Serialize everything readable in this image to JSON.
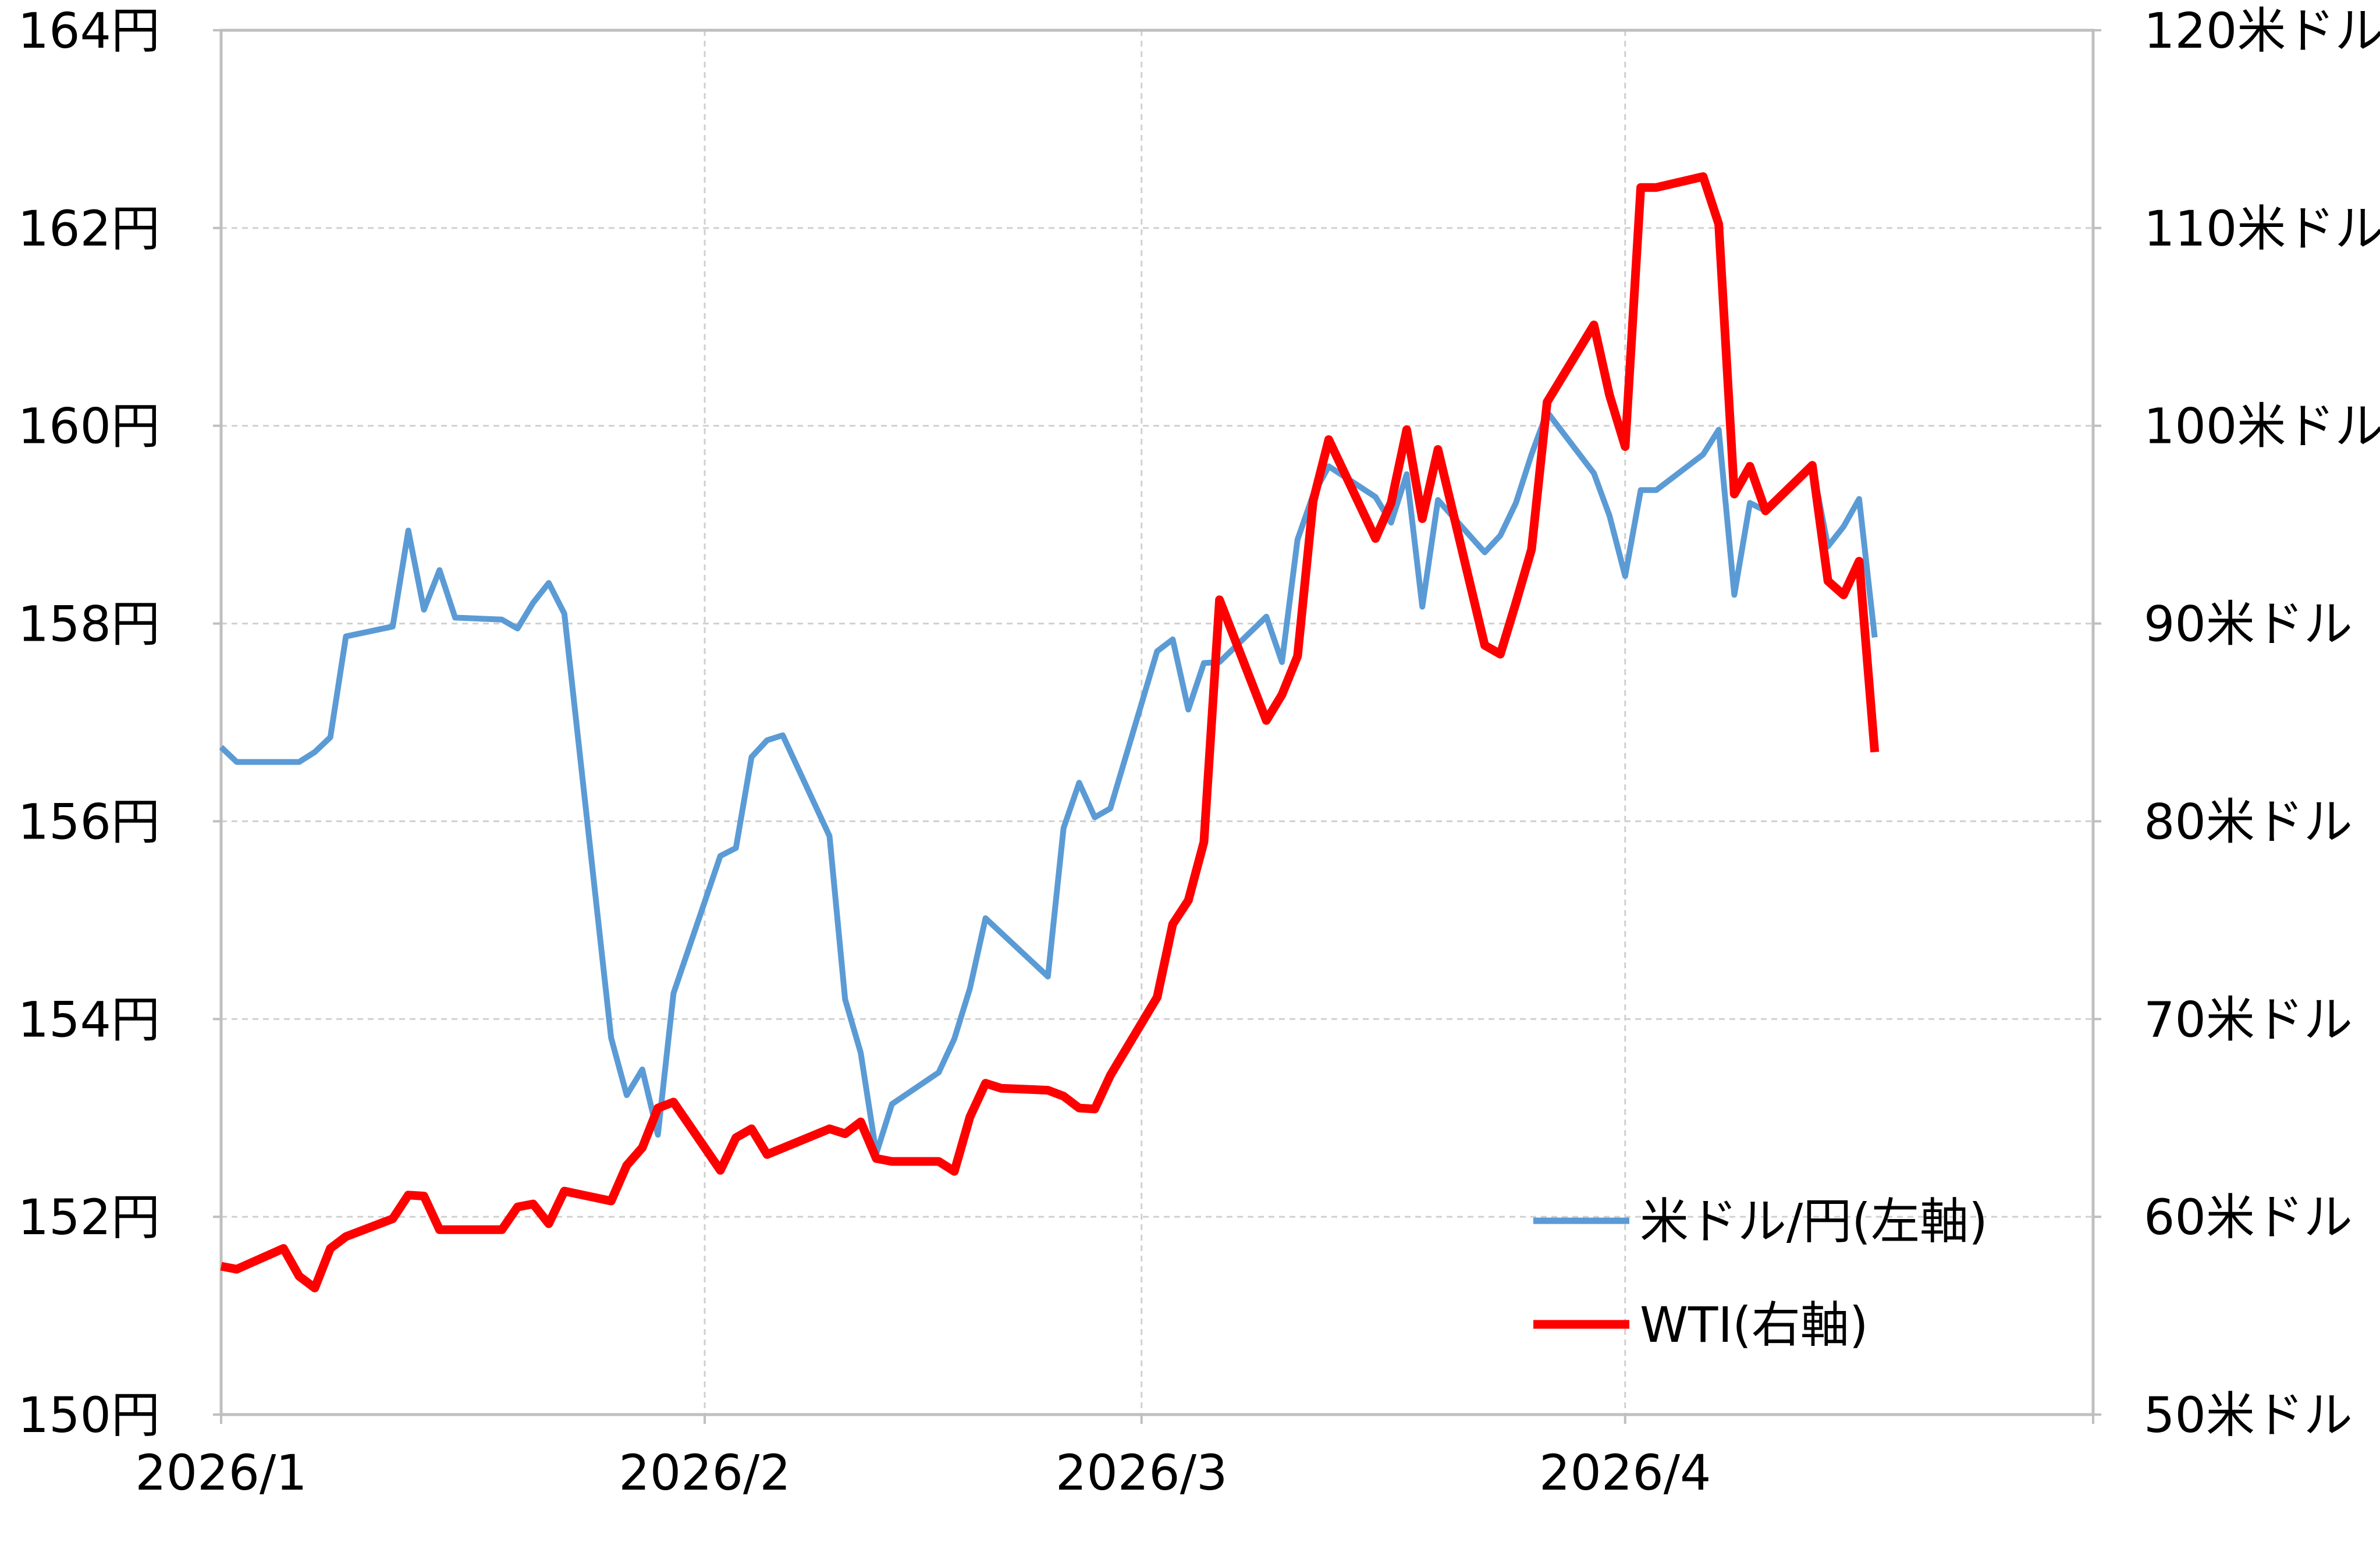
{
  "chart_data": {
    "type": "line",
    "title": "",
    "x_axis": {
      "type": "date",
      "range": [
        "2026-01-01",
        "2026-05-01"
      ],
      "tick_dates": [
        "2026-01-01",
        "2026-02-01",
        "2026-03-01",
        "2026-04-01"
      ],
      "tick_labels": [
        "2026/1",
        "2026/2",
        "2026/3",
        "2026/4"
      ],
      "grid": true
    },
    "y_left": {
      "range": [
        150,
        164
      ],
      "ticks": [
        150,
        152,
        154,
        156,
        158,
        160,
        162,
        164
      ],
      "tick_labels": [
        "150円",
        "152円",
        "154円",
        "156円",
        "158円",
        "160円",
        "162円",
        "164円"
      ],
      "grid": true
    },
    "y_right": {
      "range": [
        50,
        120
      ],
      "ticks": [
        50,
        60,
        70,
        80,
        90,
        100,
        110,
        120
      ],
      "tick_labels": [
        "50米ドル",
        "60米ドル",
        "70米ドル",
        "80米ドル",
        "90米ドル",
        "100米ドル",
        "110米ドル",
        "120米ドル"
      ]
    },
    "legend_position": "bottom-right",
    "series": [
      {
        "name": "米ドル/円(左軸)",
        "axis": "left",
        "color": "#5B9BD5",
        "points": [
          [
            "2026-01-01",
            156.75
          ],
          [
            "2026-01-02",
            156.6
          ],
          [
            "2026-01-05",
            156.6
          ],
          [
            "2026-01-06",
            156.6
          ],
          [
            "2026-01-07",
            156.7
          ],
          [
            "2026-01-08",
            156.85
          ],
          [
            "2026-01-09",
            157.87
          ],
          [
            "2026-01-12",
            157.97
          ],
          [
            "2026-01-13",
            158.94
          ],
          [
            "2026-01-14",
            158.14
          ],
          [
            "2026-01-15",
            158.54
          ],
          [
            "2026-01-16",
            158.06
          ],
          [
            "2026-01-19",
            158.04
          ],
          [
            "2026-01-20",
            157.95
          ],
          [
            "2026-01-21",
            158.21
          ],
          [
            "2026-01-22",
            158.41
          ],
          [
            "2026-01-23",
            158.1
          ],
          [
            "2026-01-26",
            153.81
          ],
          [
            "2026-01-27",
            153.23
          ],
          [
            "2026-01-28",
            153.49
          ],
          [
            "2026-01-29",
            152.83
          ],
          [
            "2026-01-30",
            154.26
          ],
          [
            "2026-02-02",
            155.65
          ],
          [
            "2026-02-03",
            155.73
          ],
          [
            "2026-02-04",
            156.65
          ],
          [
            "2026-02-05",
            156.82
          ],
          [
            "2026-02-06",
            156.87
          ],
          [
            "2026-02-09",
            155.85
          ],
          [
            "2026-02-10",
            154.2
          ],
          [
            "2026-02-11",
            153.66
          ],
          [
            "2026-02-12",
            152.64
          ],
          [
            "2026-02-13",
            153.14
          ],
          [
            "2026-02-16",
            153.46
          ],
          [
            "2026-02-17",
            153.8
          ],
          [
            "2026-02-18",
            154.31
          ],
          [
            "2026-02-19",
            155.02
          ],
          [
            "2026-02-23",
            154.43
          ],
          [
            "2026-02-24",
            155.93
          ],
          [
            "2026-02-25",
            156.39
          ],
          [
            "2026-02-26",
            156.04
          ],
          [
            "2026-02-27",
            156.13
          ],
          [
            "2026-03-02",
            157.72
          ],
          [
            "2026-03-03",
            157.84
          ],
          [
            "2026-03-04",
            157.13
          ],
          [
            "2026-03-05",
            157.6
          ],
          [
            "2026-03-06",
            157.61
          ],
          [
            "2026-03-09",
            158.07
          ],
          [
            "2026-03-10",
            157.61
          ],
          [
            "2026-03-11",
            158.85
          ],
          [
            "2026-03-12",
            159.3
          ],
          [
            "2026-03-13",
            159.59
          ],
          [
            "2026-03-16",
            159.28
          ],
          [
            "2026-03-17",
            159.02
          ],
          [
            "2026-03-18",
            159.51
          ],
          [
            "2026-03-19",
            158.17
          ],
          [
            "2026-03-20",
            159.25
          ],
          [
            "2026-03-23",
            158.72
          ],
          [
            "2026-03-24",
            158.89
          ],
          [
            "2026-03-25",
            159.22
          ],
          [
            "2026-03-26",
            159.71
          ],
          [
            "2026-03-27",
            160.14
          ],
          [
            "2026-03-30",
            159.52
          ],
          [
            "2026-03-31",
            159.09
          ],
          [
            "2026-04-01",
            158.48
          ],
          [
            "2026-04-02",
            159.35
          ],
          [
            "2026-04-03",
            159.35
          ],
          [
            "2026-04-06",
            159.71
          ],
          [
            "2026-04-07",
            159.96
          ],
          [
            "2026-04-08",
            158.29
          ],
          [
            "2026-04-09",
            159.22
          ],
          [
            "2026-04-10",
            159.14
          ],
          [
            "2026-04-13",
            159.6
          ],
          [
            "2026-04-14",
            158.78
          ],
          [
            "2026-04-15",
            158.98
          ],
          [
            "2026-04-16",
            159.26
          ],
          [
            "2026-04-17",
            157.86
          ]
        ]
      },
      {
        "name": "WTI(右軸)",
        "axis": "right",
        "color": "#FF0000",
        "points": [
          [
            "2026-01-01",
            57.5
          ],
          [
            "2026-01-02",
            57.35
          ],
          [
            "2026-01-05",
            58.4
          ],
          [
            "2026-01-06",
            57.0
          ],
          [
            "2026-01-07",
            56.4
          ],
          [
            "2026-01-08",
            58.4
          ],
          [
            "2026-01-09",
            59.0
          ],
          [
            "2026-01-12",
            59.9
          ],
          [
            "2026-01-13",
            61.1
          ],
          [
            "2026-01-14",
            61.05
          ],
          [
            "2026-01-15",
            59.35
          ],
          [
            "2026-01-19",
            59.35
          ],
          [
            "2026-01-20",
            60.5
          ],
          [
            "2026-01-21",
            60.65
          ],
          [
            "2026-01-22",
            59.65
          ],
          [
            "2026-01-23",
            61.3
          ],
          [
            "2026-01-26",
            60.8
          ],
          [
            "2026-01-27",
            62.6
          ],
          [
            "2026-01-28",
            63.5
          ],
          [
            "2026-01-29",
            65.5
          ],
          [
            "2026-01-30",
            65.8
          ],
          [
            "2026-02-02",
            62.35
          ],
          [
            "2026-02-03",
            64.0
          ],
          [
            "2026-02-04",
            64.45
          ],
          [
            "2026-02-05",
            63.15
          ],
          [
            "2026-02-09",
            64.45
          ],
          [
            "2026-02-10",
            64.2
          ],
          [
            "2026-02-11",
            64.8
          ],
          [
            "2026-02-12",
            62.95
          ],
          [
            "2026-02-13",
            62.8
          ],
          [
            "2026-02-16",
            62.8
          ],
          [
            "2026-02-17",
            62.3
          ],
          [
            "2026-02-18",
            65.05
          ],
          [
            "2026-02-19",
            66.75
          ],
          [
            "2026-02-20",
            66.5
          ],
          [
            "2026-02-23",
            66.4
          ],
          [
            "2026-02-24",
            66.1
          ],
          [
            "2026-02-25",
            65.5
          ],
          [
            "2026-02-26",
            65.45
          ],
          [
            "2026-02-27",
            67.15
          ],
          [
            "2026-03-02",
            71.1
          ],
          [
            "2026-03-03",
            74.8
          ],
          [
            "2026-03-04",
            76.0
          ],
          [
            "2026-03-05",
            78.95
          ],
          [
            "2026-03-06",
            91.2
          ],
          [
            "2026-03-09",
            85.1
          ],
          [
            "2026-03-10",
            86.4
          ],
          [
            "2026-03-11",
            88.35
          ],
          [
            "2026-03-12",
            96.2
          ],
          [
            "2026-03-13",
            99.3
          ],
          [
            "2026-03-16",
            94.3
          ],
          [
            "2026-03-17",
            96.1
          ],
          [
            "2026-03-18",
            99.8
          ],
          [
            "2026-03-19",
            95.3
          ],
          [
            "2026-03-20",
            98.8
          ],
          [
            "2026-03-23",
            88.9
          ],
          [
            "2026-03-24",
            88.45
          ],
          [
            "2026-03-25",
            91.05
          ],
          [
            "2026-03-26",
            93.75
          ],
          [
            "2026-03-27",
            101.2
          ],
          [
            "2026-03-30",
            105.1
          ],
          [
            "2026-03-31",
            101.55
          ],
          [
            "2026-04-01",
            98.95
          ],
          [
            "2026-04-02",
            112.05
          ],
          [
            "2026-04-03",
            112.05
          ],
          [
            "2026-04-06",
            112.6
          ],
          [
            "2026-04-07",
            110.2
          ],
          [
            "2026-04-08",
            96.55
          ],
          [
            "2026-04-09",
            97.95
          ],
          [
            "2026-04-10",
            95.7
          ],
          [
            "2026-04-13",
            98.0
          ],
          [
            "2026-04-14",
            92.15
          ],
          [
            "2026-04-15",
            91.45
          ],
          [
            "2026-04-16",
            93.15
          ],
          [
            "2026-04-17",
            83.5
          ]
        ]
      }
    ]
  }
}
